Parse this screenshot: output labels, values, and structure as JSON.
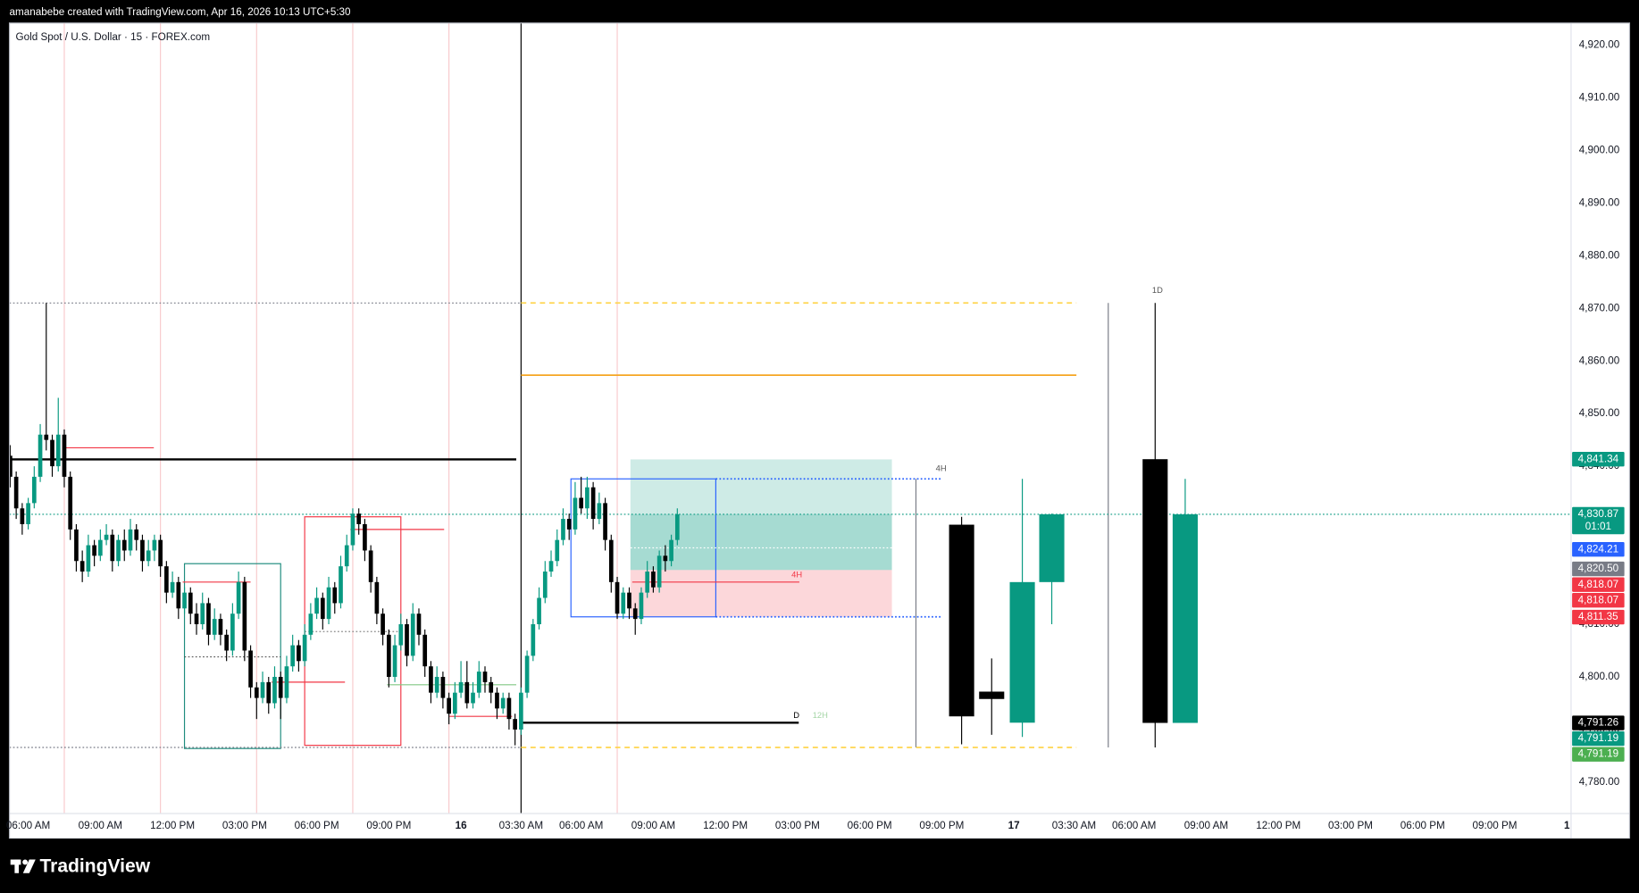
{
  "header": {
    "caption": "amanabebe created with TradingView.com, Apr 16, 2026 10:13 UTC+5:30"
  },
  "footer": {
    "brand": "TradingView"
  },
  "chart_data": {
    "type": "candlestick",
    "title": "Gold Spot / U.S. Dollar · 15 · FOREX.com",
    "up_color": "#089981",
    "down_color": "#000000",
    "grid": false,
    "xlim": [
      -3.13,
      256.7
    ],
    "ylim": [
      4774.05,
      4924.17
    ],
    "xticks": [
      {
        "value": 0,
        "label": "06:00 AM"
      },
      {
        "value": 12,
        "label": "09:00 AM"
      },
      {
        "value": 24,
        "label": "12:00 PM"
      },
      {
        "value": 36,
        "label": "03:00 PM"
      },
      {
        "value": 48,
        "label": "06:00 PM"
      },
      {
        "value": 60,
        "label": "09:00 PM"
      },
      {
        "value": 72,
        "label": "16"
      },
      {
        "value": 82,
        "label": "03:30 AM"
      },
      {
        "value": 92,
        "label": "06:00 AM"
      },
      {
        "value": 104,
        "label": "09:00 AM"
      },
      {
        "value": 116,
        "label": "12:00 PM"
      },
      {
        "value": 128,
        "label": "03:00 PM"
      },
      {
        "value": 140,
        "label": "06:00 PM"
      },
      {
        "value": 152,
        "label": "09:00 PM"
      },
      {
        "value": 164,
        "label": "17"
      },
      {
        "value": 174,
        "label": "03:30 AM"
      },
      {
        "value": 184,
        "label": "06:00 AM"
      },
      {
        "value": 196,
        "label": "09:00 AM"
      },
      {
        "value": 208,
        "label": "12:00 PM"
      },
      {
        "value": 220,
        "label": "03:00 PM"
      },
      {
        "value": 232,
        "label": "06:00 PM"
      },
      {
        "value": 244,
        "label": "09:00 PM"
      },
      {
        "value": 256,
        "label": "1"
      }
    ],
    "yticks": [
      {
        "value": 4780,
        "label": "4,780.00"
      },
      {
        "value": 4790,
        "label": "4,790.00"
      },
      {
        "value": 4800,
        "label": "4,800.00"
      },
      {
        "value": 4810,
        "label": "4,810.00"
      },
      {
        "value": 4820,
        "label": "4,820.00"
      },
      {
        "value": 4830,
        "label": "4,830.00"
      },
      {
        "value": 4840,
        "label": "4,840.00"
      },
      {
        "value": 4850,
        "label": "4,850.00"
      },
      {
        "value": 4860,
        "label": "4,860.00"
      },
      {
        "value": 4870,
        "label": "4,870.00"
      },
      {
        "value": 4880,
        "label": "4,880.00"
      },
      {
        "value": 4890,
        "label": "4,890.00"
      },
      {
        "value": 4900,
        "label": "4,900.00"
      },
      {
        "value": 4910,
        "label": "4,910.00"
      },
      {
        "value": 4920,
        "label": "4,920.00"
      }
    ],
    "x": [
      -3,
      -2,
      -1,
      0,
      1,
      2,
      3,
      4,
      5,
      6,
      7,
      8,
      9,
      10,
      11,
      12,
      13,
      14,
      15,
      16,
      17,
      18,
      19,
      20,
      21,
      22,
      23,
      24,
      25,
      26,
      27,
      28,
      29,
      30,
      31,
      32,
      33,
      34,
      35,
      36,
      37,
      38,
      39,
      40,
      41,
      42,
      43,
      44,
      45,
      46,
      47,
      48,
      49,
      50,
      51,
      52,
      53,
      54,
      55,
      56,
      57,
      58,
      59,
      60,
      61,
      62,
      63,
      64,
      65,
      66,
      67,
      68,
      69,
      70,
      71,
      72,
      73,
      74,
      75,
      76,
      77,
      78,
      79,
      80,
      81,
      82,
      83,
      84,
      85,
      86,
      87,
      88,
      89,
      90,
      91,
      92,
      93,
      94,
      95,
      96,
      97,
      98,
      99,
      100,
      101,
      102,
      103,
      104,
      105,
      106,
      107,
      108
    ],
    "open": [
      4842,
      4838,
      4832,
      4829,
      4833,
      4838,
      4846,
      4845,
      4840,
      4846,
      4838,
      4828,
      4822,
      4820,
      4825,
      4823,
      4826,
      4827,
      4822,
      4826,
      4824,
      4828,
      4826,
      4822,
      4824,
      4826,
      4821,
      4816,
      4818,
      4813,
      4816,
      4812,
      4810,
      4814,
      4808,
      4811,
      4808,
      4805,
      4812,
      4818,
      4805,
      4798,
      4796,
      4799,
      4795,
      4800,
      4796,
      4802,
      4806,
      4803,
      4808,
      4812,
      4815,
      4811,
      4817,
      4814,
      4821,
      4825,
      4831,
      4829,
      4824,
      4818,
      4812,
      4808,
      4800,
      4806,
      4810,
      4804,
      4812,
      4808,
      4802,
      4797,
      4800,
      4796,
      4793,
      4797,
      4799,
      4795,
      4797,
      4801,
      4799,
      4797,
      4794,
      4796,
      4792,
      4790,
      4797,
      4804,
      4810,
      4815,
      4820,
      4822,
      4826,
      4830,
      4828,
      4834,
      4832,
      4836,
      4830,
      4833,
      4826,
      4818,
      4812,
      4816,
      4813,
      4811,
      4816,
      4820,
      4817,
      4823,
      4822,
      4826
    ],
    "high": [
      4844,
      4839,
      4833,
      4834,
      4840,
      4848,
      4871,
      4846,
      4853,
      4847,
      4839,
      4829,
      4824,
      4827,
      4826,
      4828,
      4829,
      4828,
      4827,
      4828,
      4830,
      4829,
      4827,
      4826,
      4827,
      4827,
      4822,
      4820,
      4819,
      4817,
      4817,
      4814,
      4816,
      4815,
      4813,
      4812,
      4809,
      4814,
      4820,
      4819,
      4806,
      4799,
      4801,
      4800,
      4802,
      4801,
      4804,
      4808,
      4807,
      4810,
      4814,
      4817,
      4816,
      4819,
      4818,
      4823,
      4827,
      4832,
      4832,
      4830,
      4825,
      4819,
      4813,
      4809,
      4808,
      4812,
      4811,
      4814,
      4813,
      4809,
      4803,
      4802,
      4801,
      4797,
      4799,
      4803,
      4803,
      4799,
      4803,
      4802,
      4800,
      4798,
      4797,
      4797,
      4793,
      4798,
      4805,
      4811,
      4817,
      4822,
      4824,
      4828,
      4832,
      4831,
      4837,
      4838,
      4838,
      4837,
      4835,
      4834,
      4827,
      4819,
      4817,
      4817,
      4814,
      4817,
      4822,
      4821,
      4824,
      4825,
      4827,
      4832
    ],
    "low": [
      4836,
      4830,
      4827,
      4828,
      4832,
      4837,
      4843,
      4838,
      4839,
      4836,
      4826,
      4820,
      4818,
      4819,
      4821,
      4822,
      4825,
      4820,
      4821,
      4822,
      4823,
      4824,
      4820,
      4821,
      4822,
      4819,
      4814,
      4815,
      4811,
      4812,
      4810,
      4808,
      4809,
      4806,
      4807,
      4806,
      4803,
      4804,
      4811,
      4803,
      4796,
      4792,
      4795,
      4793,
      4794,
      4792,
      4795,
      4801,
      4801,
      4802,
      4807,
      4811,
      4809,
      4810,
      4812,
      4813,
      4820,
      4824,
      4827,
      4822,
      4816,
      4810,
      4806,
      4798,
      4799,
      4805,
      4802,
      4803,
      4806,
      4800,
      4795,
      4796,
      4794,
      4791,
      4792,
      4796,
      4794,
      4794,
      4796,
      4797,
      4795,
      4792,
      4793,
      4790,
      4787,
      4789,
      4796,
      4803,
      4809,
      4814,
      4819,
      4821,
      4825,
      4826,
      4827,
      4831,
      4830,
      4828,
      4829,
      4824,
      4816,
      4811,
      4811,
      4811,
      4808,
      4810,
      4815,
      4816,
      4816,
      4820,
      4821,
      4825
    ],
    "close": [
      4838,
      4832,
      4829,
      4833,
      4838,
      4846,
      4845,
      4840,
      4846,
      4838,
      4828,
      4822,
      4820,
      4825,
      4823,
      4826,
      4827,
      4822,
      4826,
      4824,
      4828,
      4826,
      4822,
      4824,
      4826,
      4821,
      4816,
      4818,
      4813,
      4816,
      4812,
      4810,
      4814,
      4808,
      4811,
      4808,
      4805,
      4812,
      4818,
      4805,
      4798,
      4796,
      4799,
      4795,
      4800,
      4796,
      4802,
      4806,
      4803,
      4808,
      4812,
      4815,
      4811,
      4817,
      4814,
      4821,
      4825,
      4831,
      4829,
      4824,
      4818,
      4812,
      4808,
      4800,
      4806,
      4810,
      4804,
      4812,
      4808,
      4802,
      4797,
      4800,
      4796,
      4793,
      4797,
      4799,
      4795,
      4797,
      4801,
      4799,
      4797,
      4794,
      4796,
      4792,
      4790,
      4797,
      4804,
      4810,
      4815,
      4820,
      4822,
      4826,
      4830,
      4828,
      4834,
      4832,
      4836,
      4830,
      4833,
      4826,
      4818,
      4812,
      4816,
      4813,
      4811,
      4816,
      4820,
      4817,
      4823,
      4822,
      4826,
      4830.87
    ],
    "verticals": [
      {
        "x": 6,
        "color": "#f8c9cc"
      },
      {
        "x": 22,
        "color": "#f8c9cc"
      },
      {
        "x": 38,
        "color": "#f8c9cc"
      },
      {
        "x": 54,
        "color": "#f8c9cc"
      },
      {
        "x": 70,
        "color": "#f8c9cc"
      },
      {
        "x": 98,
        "color": "#f8c9cc"
      },
      {
        "x": 82,
        "color": "#000000"
      },
      {
        "x": 147.7,
        "color": "#787b86",
        "top": 4837.6,
        "bottom": 4786.6
      },
      {
        "x": 179.7,
        "color": "#787b86",
        "top": 4871,
        "bottom": 4786.6
      }
    ],
    "boxes": [
      {
        "from": 100.2,
        "to": 143.7,
        "top": 4841.3,
        "bottom": 4820.3,
        "fill": "rgba(8,153,129,0.2)",
        "stroke": "none"
      },
      {
        "from": 100.2,
        "to": 143.7,
        "top": 4830.87,
        "bottom": 4820.3,
        "fill": "rgba(8,153,129,0.2)",
        "stroke": "none"
      },
      {
        "from": 100.2,
        "to": 143.7,
        "top": 4820.3,
        "bottom": 4811.4,
        "fill": "rgba(242,54,69,0.2)",
        "stroke": "none"
      },
      {
        "from": 26,
        "to": 42,
        "top": 4821.5,
        "bottom": 4786.4,
        "fill": "none",
        "stroke": "#1e8c7e"
      },
      {
        "from": 46,
        "to": 62,
        "top": 4830.4,
        "bottom": 4787,
        "fill": "none",
        "stroke": "#f23645"
      },
      {
        "from": 90.3,
        "to": 114.4,
        "top": 4837.6,
        "bottom": 4811.4,
        "fill": "none",
        "stroke": "#2962ff"
      }
    ],
    "lines": [
      {
        "price": 4871,
        "from": -3.13,
        "to": 82,
        "color": "#787b86",
        "style": "dotted",
        "width": 1
      },
      {
        "price": 4786.6,
        "from": -3.13,
        "to": 82,
        "color": "#787b86",
        "style": "dotted",
        "width": 1
      },
      {
        "price": 4871,
        "from": 82,
        "to": 174.4,
        "color": "#ffd54f",
        "style": "dashed",
        "width": 1.5
      },
      {
        "price": 4786.6,
        "from": 82,
        "to": 174.4,
        "color": "#ffd54f",
        "style": "dashed",
        "width": 1.5
      },
      {
        "price": 4857.3,
        "from": 82,
        "to": 174.4,
        "color": "#f5a623",
        "style": "solid",
        "width": 1.5
      },
      {
        "price": 4830.87,
        "from": -3.13,
        "to": 256.7,
        "color": "#089981",
        "style": "dotted",
        "width": 1
      },
      {
        "price": 4841.3,
        "from": -3.13,
        "to": 81.2,
        "color": "#000000",
        "style": "solid",
        "width": 2
      },
      {
        "price": 4791.3,
        "from": 82,
        "to": 128.2,
        "color": "#000000",
        "style": "solid",
        "width": 2
      },
      {
        "price": 4843.5,
        "from": 5.7,
        "to": 20.9,
        "color": "#f23645",
        "style": "solid",
        "width": 1
      },
      {
        "price": 4818,
        "from": 25.7,
        "to": 37,
        "color": "#f23645",
        "style": "solid",
        "width": 1
      },
      {
        "price": 4828,
        "from": 53.6,
        "to": 69.2,
        "color": "#f23645",
        "style": "solid",
        "width": 1
      },
      {
        "price": 4818,
        "from": 100.5,
        "to": 128.3,
        "color": "#f23645",
        "style": "solid",
        "width": 1
      },
      {
        "price": 4798.5,
        "from": 59.7,
        "to": 81.2,
        "color": "#81c784",
        "style": "solid",
        "width": 1
      },
      {
        "price": 4799,
        "from": 40.5,
        "to": 52.7,
        "color": "#f23645",
        "style": "solid",
        "width": 1
      },
      {
        "price": 4792.5,
        "from": 70.1,
        "to": 80.5,
        "color": "#f23645",
        "style": "solid",
        "width": 1
      },
      {
        "price": 4803.8,
        "from": 26,
        "to": 42,
        "color": "#555555",
        "style": "dotted",
        "width": 1
      },
      {
        "price": 4808.6,
        "from": 46,
        "to": 62,
        "color": "#888888",
        "style": "dotted",
        "width": 1
      },
      {
        "price": 4824.5,
        "from": 100.2,
        "to": 143.7,
        "color": "#ffffff",
        "style": "dotted",
        "width": 1
      },
      {
        "price": 4837.6,
        "from": 114.4,
        "to": 151.8,
        "color": "#2962ff",
        "style": "dotted",
        "width": 1.5
      },
      {
        "price": 4811.4,
        "from": 114.4,
        "to": 151.8,
        "color": "#2962ff",
        "style": "dotted",
        "width": 1.5
      }
    ],
    "annotations": [
      {
        "text": "4H",
        "x": 127,
        "price": 4818.5,
        "color": "#f23645"
      },
      {
        "text": "4H",
        "x": 151,
        "price": 4838.7,
        "color": "#555555"
      },
      {
        "text": "1D",
        "x": 187,
        "price": 4872.5,
        "color": "#555555"
      },
      {
        "text": "D",
        "x": 127.3,
        "price": 4791.8,
        "color": "#000000"
      },
      {
        "text": "12H",
        "x": 130.5,
        "price": 4791.8,
        "color": "#a5d6a7"
      }
    ],
    "htf_candles": [
      {
        "x": 155.3,
        "open": 4828.9,
        "high": 4830.4,
        "low": 4787.2,
        "close": 4792.5
      },
      {
        "x": 160.3,
        "open": 4797.2,
        "high": 4803.5,
        "low": 4789,
        "close": 4795.8
      },
      {
        "x": 165.4,
        "open": 4791.3,
        "high": 4837.6,
        "low": 4788.6,
        "close": 4818
      },
      {
        "x": 170.3,
        "open": 4818,
        "high": 4831,
        "low": 4810,
        "close": 4830.87
      },
      {
        "x": 187.5,
        "open": 4841.34,
        "high": 4871,
        "low": 4786.6,
        "close": 4791.26
      },
      {
        "x": 192.5,
        "open": 4791.26,
        "high": 4837.6,
        "low": 4791.26,
        "close": 4830.87
      }
    ],
    "price_labels": [
      {
        "value": 4841.34,
        "label": "4,841.34",
        "color": "#089981"
      },
      {
        "value": 4830.87,
        "label": "4,830.87",
        "sublabel": "01:01",
        "color": "#089981"
      },
      {
        "value": 4824.21,
        "label": "4,824.21",
        "color": "#2962ff"
      },
      {
        "value": 4820.5,
        "label": "4,820.50",
        "color": "#787b86"
      },
      {
        "value": 4818.07,
        "label": "4,818.07",
        "color": "#f23645"
      },
      {
        "value": 4818.07,
        "label": "4,818.07",
        "color": "#f23645"
      },
      {
        "value": 4811.35,
        "label": "4,811.35",
        "color": "#f23645"
      },
      {
        "value": 4791.26,
        "label": "4,791.26",
        "color": "#000000"
      },
      {
        "value": 4791.19,
        "label": "4,791.19",
        "color": "#089981"
      },
      {
        "value": 4791.19,
        "label": "4,791.19",
        "color": "#4caf50"
      }
    ]
  }
}
